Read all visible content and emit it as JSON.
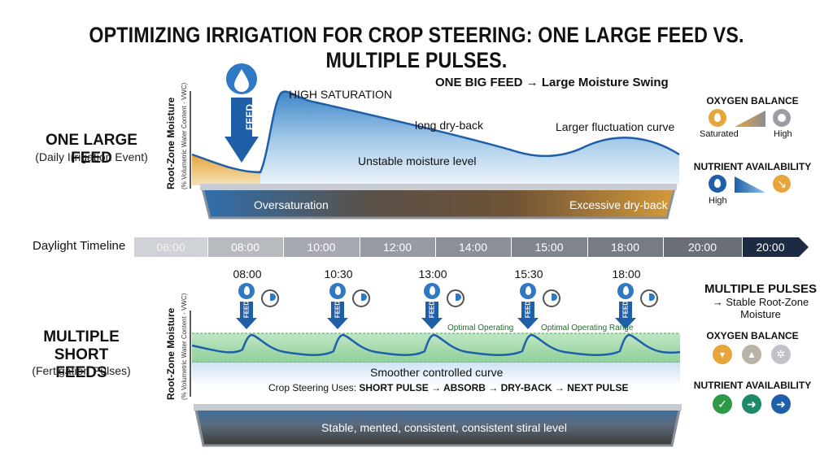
{
  "title": "OPTIMIZING IRRIGATION FOR CROP STEERING: ONE LARGE FEED VS. MULTIPLE PULSES.",
  "top": {
    "side_title": "ONE LARGE FEED",
    "side_subtitle": "(Daily Irrigation Event)",
    "ylabel": "Root-Zone Moisture",
    "ylabel_sub": "(% Volumetric Water Content - VWC)",
    "feed_label": "FEED",
    "high_saturation": "HIGH SATURATION",
    "headline": "ONE BIG FEED → Large Moisture Swing",
    "long_dryback": "long dry-back",
    "larger_fluctuation": "Larger fluctuation curve",
    "unstable": "Unstable moisture level",
    "oversaturation": "Oversaturation",
    "excessive_dryback": "Excessive dry-back"
  },
  "timeline": {
    "label": "Daylight Timeline",
    "ticks": [
      "06:00",
      "08:00",
      "10:00",
      "12:00",
      "14:00",
      "15:00",
      "18:00",
      "20:00",
      "20:00"
    ]
  },
  "bottom": {
    "side_title_line1": "MULTIPLE",
    "side_title_line2": "SHORT FEEDS",
    "side_subtitle": "(Fertigation Pulses)",
    "ylabel": "Root-Zone Moisture",
    "ylabel_sub": "(% Volumetric Water Content - VWC)",
    "pulse_times": [
      "08:00",
      "10:30",
      "13:00",
      "15:30",
      "18:00"
    ],
    "feed_label": "FEED",
    "optimal_1": "Optimal Operating",
    "optimal_2": "Optimal Operating Range",
    "smoother": "Smoother controlled curve",
    "crop_steering_prefix": "Crop Steering Uses: ",
    "crop_steering_steps": "SHORT PULSE → ABSORB → DRY-BACK → NEXT PULSE",
    "tray_text": "Stable, mented, consistent, consistent stiral level"
  },
  "right_top": {
    "oxygen_title": "OXYGEN BALANCE",
    "saturated": "Saturated",
    "high": "High",
    "nutrient_title": "NUTRIENT AVAILABILITY",
    "nutrient_high": "High"
  },
  "right_bottom": {
    "title": "MULTIPLE PULSES",
    "subtitle_line1": "→ Stable Root-Zone",
    "subtitle_line2": "Moisture",
    "oxygen_title": "OXYGEN BALANCE",
    "nutrient_title": "NUTRIENT AVAILABILITY"
  },
  "colors": {
    "feed_blue": "#1f5fa8",
    "water_blue": "#2f78c4",
    "dryback_orange": "#e8a53a",
    "optimal_green": "#9fd8a8",
    "timeline_gray": "#8a8e94",
    "timeline_dark": "#1c2a44"
  }
}
